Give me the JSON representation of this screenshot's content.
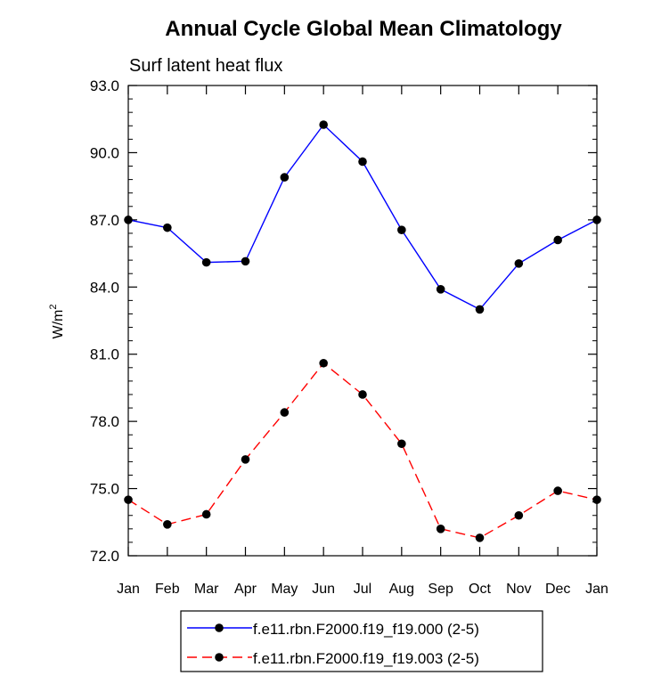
{
  "chart_data": {
    "type": "line",
    "title": "Annual Cycle Global Mean Climatology",
    "subtitle": "Surf latent heat flux",
    "ylabel_base": "W/m",
    "ylabel_sup": "2",
    "xlabel": "",
    "categories": [
      "Jan",
      "Feb",
      "Mar",
      "Apr",
      "May",
      "Jun",
      "Jul",
      "Aug",
      "Sep",
      "Oct",
      "Nov",
      "Dec",
      "Jan"
    ],
    "ylim": [
      72.0,
      93.0
    ],
    "yticks": [
      "72.0",
      "75.0",
      "78.0",
      "81.0",
      "84.0",
      "87.0",
      "90.0",
      "93.0"
    ],
    "legend_position": "bottom-center",
    "series": [
      {
        "name": "f.e11.rbn.F2000.f19_f19.000 (2-5)",
        "color": "#0000ff",
        "dash": "solid",
        "values": [
          87.0,
          86.65,
          85.1,
          85.15,
          88.9,
          91.25,
          89.6,
          86.55,
          83.9,
          83.0,
          85.05,
          86.1,
          87.0
        ]
      },
      {
        "name": "f.e11.rbn.F2000.f19_f19.003 (2-5)",
        "color": "#ff0000",
        "dash": "dashed",
        "values": [
          74.5,
          73.4,
          73.85,
          76.3,
          78.4,
          80.6,
          79.2,
          77.0,
          73.2,
          72.8,
          73.8,
          74.9,
          74.5
        ]
      }
    ]
  }
}
